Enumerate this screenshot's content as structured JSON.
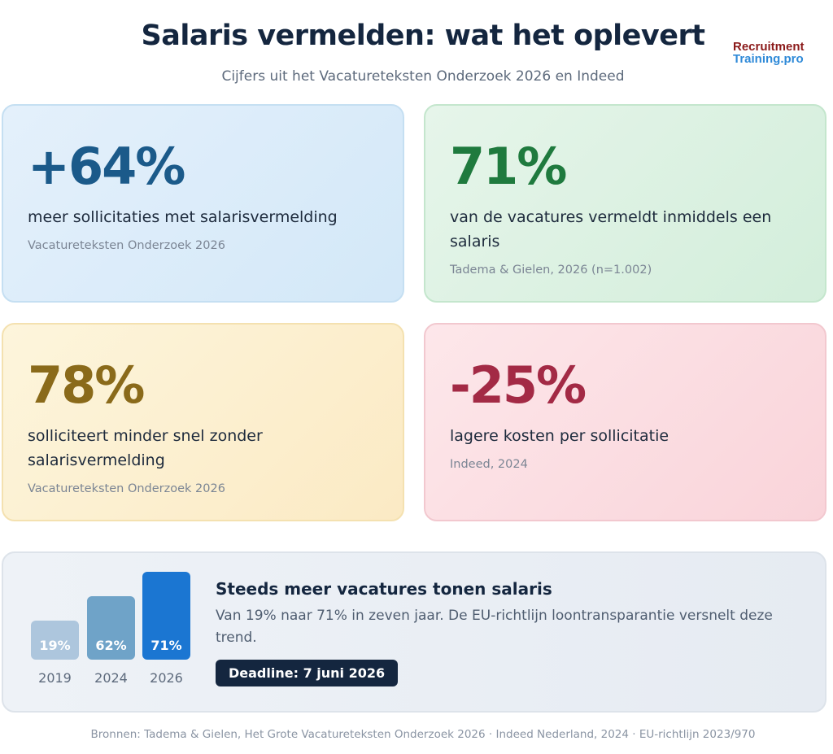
{
  "header": {
    "title": "Salaris vermelden: wat het oplevert",
    "subtitle": "Cijfers uit het Vacatureteksten Onderzoek 2026 en Indeed",
    "logo_line1": "Recruitment",
    "logo_line2": "Training.pro"
  },
  "cards": [
    {
      "value": "+64%",
      "description": "meer sollicitaties met salarisvermelding",
      "source": "Vacatureteksten Onderzoek 2026",
      "color": "#1b5a8a"
    },
    {
      "value": "71%",
      "description": "van de vacatures vermeldt inmiddels een salaris",
      "source": "Tadema & Gielen, 2026 (n=1.002)",
      "color": "#1f7a3e"
    },
    {
      "value": "78%",
      "description": "solliciteert minder snel zonder salarisvermelding",
      "source": "Vacatureteksten Onderzoek 2026",
      "color": "#8a6a1a"
    },
    {
      "value": "-25%",
      "description": "lagere kosten per sollicitatie",
      "source": "Indeed, 2024",
      "color": "#a32a45"
    }
  ],
  "trend": {
    "title": "Steeds meer vacatures tonen salaris",
    "text": "Van 19% naar 71% in zeven jaar. De EU-richtlijn loontransparantie versnelt deze trend.",
    "deadline": "Deadline: 7 juni 2026"
  },
  "chart_data": {
    "type": "bar",
    "categories": [
      "2019",
      "2024",
      "2026"
    ],
    "values": [
      19,
      62,
      71
    ],
    "labels": [
      "19%",
      "62%",
      "71%"
    ],
    "colors": [
      "#adc6dd",
      "#6fa3c8",
      "#1b76d2"
    ]
  },
  "footer": "Bronnen: Tadema & Gielen, Het Grote Vacatureteksten Onderzoek 2026 · Indeed Nederland, 2024 · EU-richtlijn 2023/970"
}
